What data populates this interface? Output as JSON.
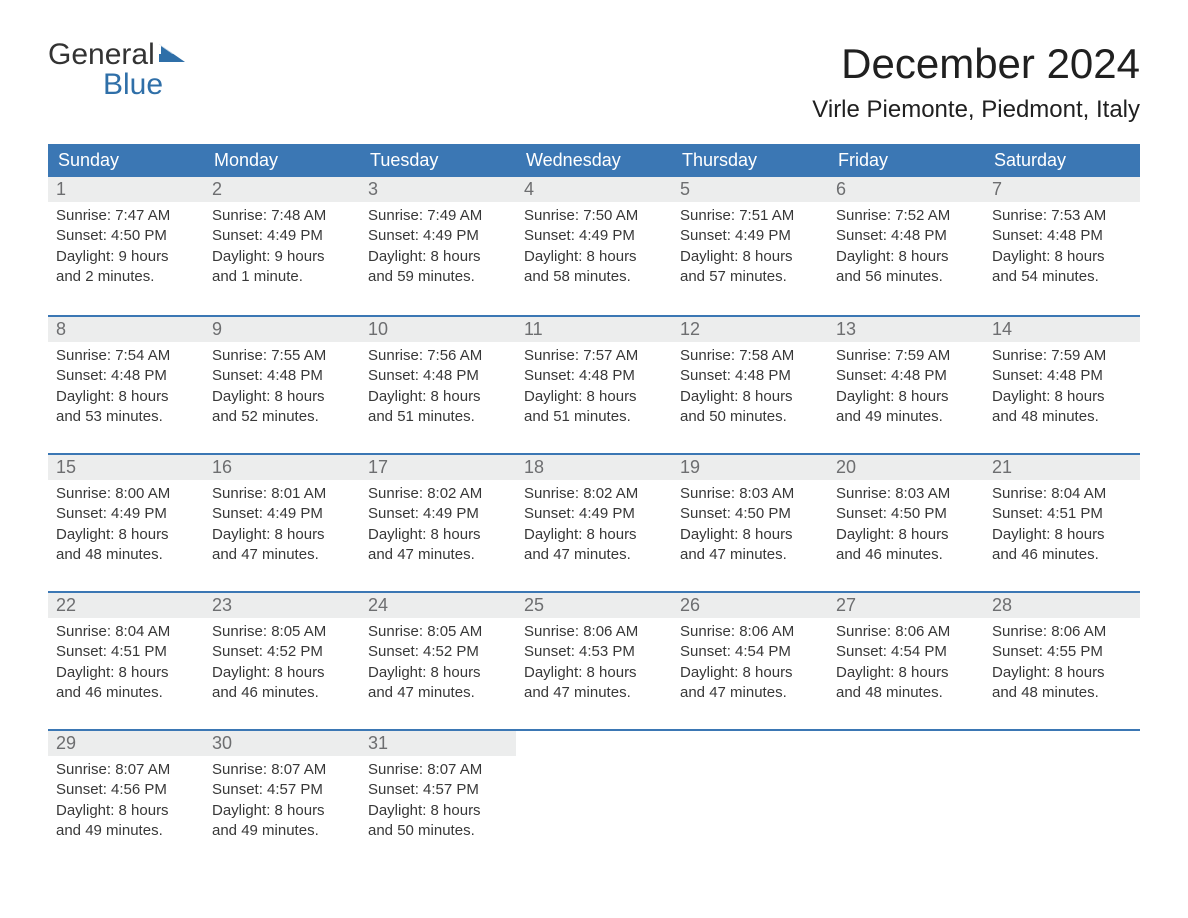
{
  "logo": {
    "word1": "General",
    "word2": "Blue"
  },
  "title": "December 2024",
  "location": "Virle Piemonte, Piedmont, Italy",
  "colors": {
    "header_bg": "#3b77b4",
    "header_text": "#ffffff",
    "daynum_bg": "#eceded",
    "daynum_text": "#6d6e70",
    "body_text": "#383838",
    "logo_accent": "#2f6fa8",
    "page_bg": "#ffffff"
  },
  "typography": {
    "title_fontsize": 42,
    "location_fontsize": 24,
    "weekday_fontsize": 18,
    "daynum_fontsize": 18,
    "body_fontsize": 15,
    "logo_fontsize": 30
  },
  "layout": {
    "columns": 7,
    "rows": 5
  },
  "weekdays": [
    "Sunday",
    "Monday",
    "Tuesday",
    "Wednesday",
    "Thursday",
    "Friday",
    "Saturday"
  ],
  "weeks": [
    [
      {
        "n": "1",
        "sr": "Sunrise: 7:47 AM",
        "ss": "Sunset: 4:50 PM",
        "d1": "Daylight: 9 hours",
        "d2": "and 2 minutes."
      },
      {
        "n": "2",
        "sr": "Sunrise: 7:48 AM",
        "ss": "Sunset: 4:49 PM",
        "d1": "Daylight: 9 hours",
        "d2": "and 1 minute."
      },
      {
        "n": "3",
        "sr": "Sunrise: 7:49 AM",
        "ss": "Sunset: 4:49 PM",
        "d1": "Daylight: 8 hours",
        "d2": "and 59 minutes."
      },
      {
        "n": "4",
        "sr": "Sunrise: 7:50 AM",
        "ss": "Sunset: 4:49 PM",
        "d1": "Daylight: 8 hours",
        "d2": "and 58 minutes."
      },
      {
        "n": "5",
        "sr": "Sunrise: 7:51 AM",
        "ss": "Sunset: 4:49 PM",
        "d1": "Daylight: 8 hours",
        "d2": "and 57 minutes."
      },
      {
        "n": "6",
        "sr": "Sunrise: 7:52 AM",
        "ss": "Sunset: 4:48 PM",
        "d1": "Daylight: 8 hours",
        "d2": "and 56 minutes."
      },
      {
        "n": "7",
        "sr": "Sunrise: 7:53 AM",
        "ss": "Sunset: 4:48 PM",
        "d1": "Daylight: 8 hours",
        "d2": "and 54 minutes."
      }
    ],
    [
      {
        "n": "8",
        "sr": "Sunrise: 7:54 AM",
        "ss": "Sunset: 4:48 PM",
        "d1": "Daylight: 8 hours",
        "d2": "and 53 minutes."
      },
      {
        "n": "9",
        "sr": "Sunrise: 7:55 AM",
        "ss": "Sunset: 4:48 PM",
        "d1": "Daylight: 8 hours",
        "d2": "and 52 minutes."
      },
      {
        "n": "10",
        "sr": "Sunrise: 7:56 AM",
        "ss": "Sunset: 4:48 PM",
        "d1": "Daylight: 8 hours",
        "d2": "and 51 minutes."
      },
      {
        "n": "11",
        "sr": "Sunrise: 7:57 AM",
        "ss": "Sunset: 4:48 PM",
        "d1": "Daylight: 8 hours",
        "d2": "and 51 minutes."
      },
      {
        "n": "12",
        "sr": "Sunrise: 7:58 AM",
        "ss": "Sunset: 4:48 PM",
        "d1": "Daylight: 8 hours",
        "d2": "and 50 minutes."
      },
      {
        "n": "13",
        "sr": "Sunrise: 7:59 AM",
        "ss": "Sunset: 4:48 PM",
        "d1": "Daylight: 8 hours",
        "d2": "and 49 minutes."
      },
      {
        "n": "14",
        "sr": "Sunrise: 7:59 AM",
        "ss": "Sunset: 4:48 PM",
        "d1": "Daylight: 8 hours",
        "d2": "and 48 minutes."
      }
    ],
    [
      {
        "n": "15",
        "sr": "Sunrise: 8:00 AM",
        "ss": "Sunset: 4:49 PM",
        "d1": "Daylight: 8 hours",
        "d2": "and 48 minutes."
      },
      {
        "n": "16",
        "sr": "Sunrise: 8:01 AM",
        "ss": "Sunset: 4:49 PM",
        "d1": "Daylight: 8 hours",
        "d2": "and 47 minutes."
      },
      {
        "n": "17",
        "sr": "Sunrise: 8:02 AM",
        "ss": "Sunset: 4:49 PM",
        "d1": "Daylight: 8 hours",
        "d2": "and 47 minutes."
      },
      {
        "n": "18",
        "sr": "Sunrise: 8:02 AM",
        "ss": "Sunset: 4:49 PM",
        "d1": "Daylight: 8 hours",
        "d2": "and 47 minutes."
      },
      {
        "n": "19",
        "sr": "Sunrise: 8:03 AM",
        "ss": "Sunset: 4:50 PM",
        "d1": "Daylight: 8 hours",
        "d2": "and 47 minutes."
      },
      {
        "n": "20",
        "sr": "Sunrise: 8:03 AM",
        "ss": "Sunset: 4:50 PM",
        "d1": "Daylight: 8 hours",
        "d2": "and 46 minutes."
      },
      {
        "n": "21",
        "sr": "Sunrise: 8:04 AM",
        "ss": "Sunset: 4:51 PM",
        "d1": "Daylight: 8 hours",
        "d2": "and 46 minutes."
      }
    ],
    [
      {
        "n": "22",
        "sr": "Sunrise: 8:04 AM",
        "ss": "Sunset: 4:51 PM",
        "d1": "Daylight: 8 hours",
        "d2": "and 46 minutes."
      },
      {
        "n": "23",
        "sr": "Sunrise: 8:05 AM",
        "ss": "Sunset: 4:52 PM",
        "d1": "Daylight: 8 hours",
        "d2": "and 46 minutes."
      },
      {
        "n": "24",
        "sr": "Sunrise: 8:05 AM",
        "ss": "Sunset: 4:52 PM",
        "d1": "Daylight: 8 hours",
        "d2": "and 47 minutes."
      },
      {
        "n": "25",
        "sr": "Sunrise: 8:06 AM",
        "ss": "Sunset: 4:53 PM",
        "d1": "Daylight: 8 hours",
        "d2": "and 47 minutes."
      },
      {
        "n": "26",
        "sr": "Sunrise: 8:06 AM",
        "ss": "Sunset: 4:54 PM",
        "d1": "Daylight: 8 hours",
        "d2": "and 47 minutes."
      },
      {
        "n": "27",
        "sr": "Sunrise: 8:06 AM",
        "ss": "Sunset: 4:54 PM",
        "d1": "Daylight: 8 hours",
        "d2": "and 48 minutes."
      },
      {
        "n": "28",
        "sr": "Sunrise: 8:06 AM",
        "ss": "Sunset: 4:55 PM",
        "d1": "Daylight: 8 hours",
        "d2": "and 48 minutes."
      }
    ],
    [
      {
        "n": "29",
        "sr": "Sunrise: 8:07 AM",
        "ss": "Sunset: 4:56 PM",
        "d1": "Daylight: 8 hours",
        "d2": "and 49 minutes."
      },
      {
        "n": "30",
        "sr": "Sunrise: 8:07 AM",
        "ss": "Sunset: 4:57 PM",
        "d1": "Daylight: 8 hours",
        "d2": "and 49 minutes."
      },
      {
        "n": "31",
        "sr": "Sunrise: 8:07 AM",
        "ss": "Sunset: 4:57 PM",
        "d1": "Daylight: 8 hours",
        "d2": "and 50 minutes."
      },
      null,
      null,
      null,
      null
    ]
  ]
}
